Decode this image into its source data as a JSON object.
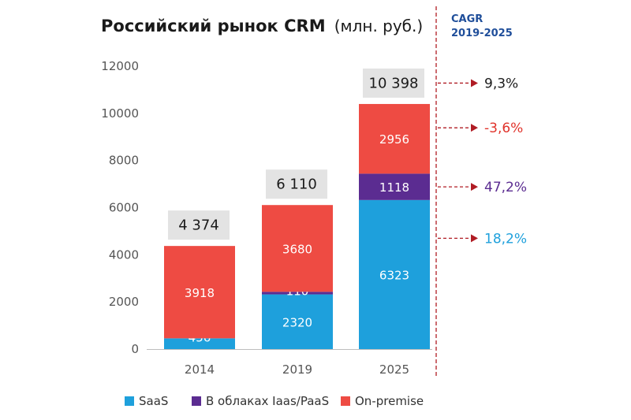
{
  "header": {
    "title_bold": "Российский рынок CRM",
    "title_unit": "(млн. руб.)",
    "cagr_line1": "CAGR",
    "cagr_line2": "2019-2025"
  },
  "chart_data": {
    "type": "bar",
    "stacked": true,
    "title": "Российский рынок CRM (млн. руб.)",
    "categories": [
      "2014",
      "2019",
      "2025"
    ],
    "series": [
      {
        "name": "SaaS",
        "color": "#1ea0dc",
        "values": [
          456,
          2320,
          6323
        ]
      },
      {
        "name": "В облаках Iaas/PaaS",
        "color": "#5b2c91",
        "values": [
          0,
          110,
          1118
        ]
      },
      {
        "name": "On-premise",
        "color": "#ee4b43",
        "values": [
          3918,
          3680,
          2956
        ]
      }
    ],
    "segment_labels": [
      [
        "456",
        "",
        "3918"
      ],
      [
        "2320",
        "110",
        "3680"
      ],
      [
        "6323",
        "1118",
        "2956"
      ]
    ],
    "totals": [
      "4 374",
      "6 110",
      "10 398"
    ],
    "ylim": [
      0,
      12000
    ],
    "yticks": [
      0,
      2000,
      4000,
      6000,
      8000,
      10000,
      12000
    ],
    "grid": false,
    "legend_position": "bottom",
    "cagr": [
      {
        "label": "9,3%",
        "color": "#1a1a1a",
        "anchor": "total"
      },
      {
        "label": "-3,6%",
        "color": "#e0332b",
        "anchor": "On-premise"
      },
      {
        "label": "47,2%",
        "color": "#5b2c91",
        "anchor": "В облаках Iaas/PaaS"
      },
      {
        "label": "18,2%",
        "color": "#1ea0dc",
        "anchor": "SaaS"
      }
    ],
    "arrow_color": "#b01c24",
    "total_box_color": "#e3e3e3"
  }
}
